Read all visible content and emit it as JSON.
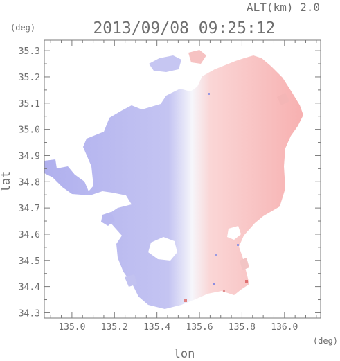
{
  "header": {
    "altitude": "ALT(km) 2.0",
    "timestamp": "2013/09/08 09:25:12",
    "y_unit": "(deg)",
    "x_unit": "(deg)"
  },
  "chart_data": {
    "type": "heatmap",
    "title": "2013/09/08 09:25:12",
    "xlabel": "lon",
    "ylabel": "lat",
    "xlim": [
      134.87,
      136.17
    ],
    "ylim": [
      34.28,
      35.34
    ],
    "x_ticks": [
      "135.0",
      "135.2",
      "135.4",
      "135.6",
      "135.8",
      "136.0"
    ],
    "y_ticks": [
      "34.3",
      "34.4",
      "34.5",
      "34.6",
      "34.7",
      "34.8",
      "34.9",
      "35.0",
      "35.1",
      "35.2",
      "35.3"
    ],
    "grid": false,
    "colormap": {
      "negative": "#b4b4f0",
      "zero": "#f8f8fc",
      "positive": "#f7b4b4"
    },
    "field_summary": {
      "west_of_135.53": "negative (blue)",
      "east_of_135.53": "positive (red)"
    }
  },
  "colors": {
    "axis": "#7a7a7a",
    "text": "#6e6e6e",
    "blue": "#b4b4f0",
    "red": "#f7b4b4"
  }
}
